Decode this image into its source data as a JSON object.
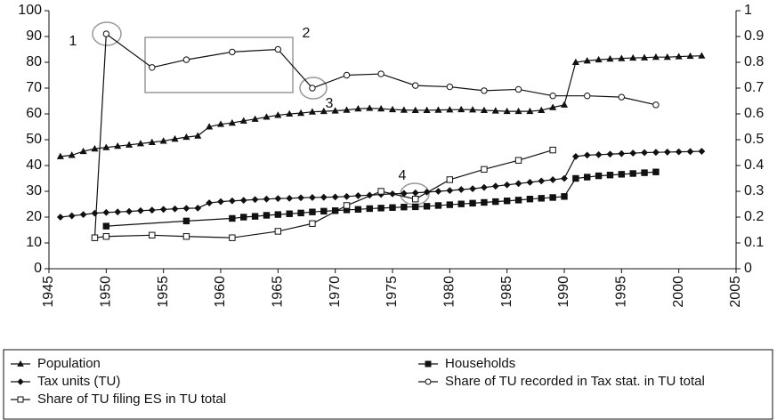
{
  "chart_data": {
    "type": "line",
    "xlim": [
      1945,
      2005
    ],
    "xticks": [
      1945,
      1950,
      1955,
      1960,
      1965,
      1970,
      1975,
      1980,
      1985,
      1990,
      1995,
      2000,
      2005
    ],
    "ylim": [
      0,
      100
    ],
    "yticks": [
      0,
      10,
      20,
      30,
      40,
      50,
      60,
      70,
      80,
      90,
      100
    ],
    "y2lim": [
      0,
      1
    ],
    "y2ticks": [
      0,
      0.1,
      0.2,
      0.3,
      0.4,
      0.5,
      0.6,
      0.7,
      0.8,
      0.9,
      1
    ],
    "annotations": [
      "1",
      "2",
      "3",
      "4"
    ],
    "series": [
      {
        "name": "Population",
        "marker": "triangle",
        "color": "#111111",
        "x": [
          1946,
          1947,
          1948,
          1949,
          1950,
          1951,
          1952,
          1953,
          1954,
          1955,
          1956,
          1957,
          1958,
          1959,
          1960,
          1961,
          1962,
          1963,
          1964,
          1965,
          1966,
          1967,
          1968,
          1969,
          1970,
          1971,
          1972,
          1973,
          1974,
          1975,
          1976,
          1977,
          1978,
          1979,
          1980,
          1981,
          1982,
          1983,
          1984,
          1985,
          1986,
          1987,
          1988,
          1989,
          1990,
          1991,
          1992,
          1993,
          1994,
          1995,
          1996,
          1997,
          1998,
          1999,
          2000,
          2001,
          2002
        ],
        "values": [
          43.5,
          44,
          45.5,
          46.5,
          47,
          47.5,
          48,
          48.5,
          49,
          49.5,
          50.3,
          51,
          51.5,
          55,
          56,
          56.5,
          57.3,
          58,
          58.8,
          59.5,
          60,
          60.3,
          60.8,
          61,
          61.2,
          61.5,
          62,
          62.2,
          62,
          61.7,
          61.5,
          61.4,
          61.4,
          61.5,
          61.6,
          61.7,
          61.6,
          61.4,
          61.2,
          61,
          61,
          61,
          61.4,
          62.5,
          63.5,
          80,
          80.6,
          81,
          81.3,
          81.5,
          81.7,
          81.8,
          82,
          82,
          82.2,
          82.4,
          82.5
        ]
      },
      {
        "name": "Households",
        "marker": "square",
        "color": "#111111",
        "x": [
          1950,
          1957,
          1961,
          1962,
          1963,
          1964,
          1965,
          1966,
          1967,
          1968,
          1969,
          1970,
          1971,
          1972,
          1973,
          1974,
          1975,
          1976,
          1977,
          1978,
          1979,
          1980,
          1981,
          1982,
          1983,
          1984,
          1985,
          1986,
          1987,
          1988,
          1989,
          1990,
          1991,
          1992,
          1993,
          1994,
          1995,
          1996,
          1997,
          1998
        ],
        "values": [
          16.5,
          18.5,
          19.5,
          20,
          20.3,
          20.7,
          21,
          21.3,
          21.6,
          22,
          22.3,
          22.5,
          22.8,
          23,
          23.3,
          23.5,
          23.7,
          23.9,
          24,
          24.2,
          24.5,
          24.8,
          25.1,
          25.4,
          25.7,
          26,
          26.3,
          26.6,
          27,
          27.3,
          27.6,
          28,
          35,
          35.5,
          36,
          36.3,
          36.6,
          36.9,
          37.2,
          37.5
        ]
      },
      {
        "name": "Tax units (TU)",
        "marker": "diamond",
        "color": "#111111",
        "x": [
          1946,
          1947,
          1948,
          1949,
          1950,
          1951,
          1952,
          1953,
          1954,
          1955,
          1956,
          1957,
          1958,
          1959,
          1960,
          1961,
          1962,
          1963,
          1964,
          1965,
          1966,
          1967,
          1968,
          1969,
          1970,
          1971,
          1972,
          1973,
          1974,
          1975,
          1976,
          1977,
          1978,
          1979,
          1980,
          1981,
          1982,
          1983,
          1984,
          1985,
          1986,
          1987,
          1988,
          1989,
          1990,
          1991,
          1992,
          1993,
          1994,
          1995,
          1996,
          1997,
          1998,
          1999,
          2000,
          2001,
          2002
        ],
        "values": [
          20,
          20.5,
          21,
          21.5,
          21.8,
          22,
          22.2,
          22.5,
          22.7,
          23,
          23.2,
          23.4,
          23.5,
          25.5,
          26,
          26.3,
          26.5,
          26.8,
          27,
          27.2,
          27.3,
          27.5,
          27.6,
          27.7,
          27.8,
          28,
          28.3,
          28.5,
          28.8,
          29,
          29.2,
          29.4,
          29.7,
          30,
          30.3,
          30.7,
          31,
          31.5,
          32,
          32.5,
          33,
          33.5,
          34,
          34.5,
          35,
          43.5,
          44,
          44.2,
          44.4,
          44.6,
          44.8,
          45,
          45.1,
          45.2,
          45.3,
          45.4,
          45.5
        ]
      },
      {
        "name": "Share of TU recorded in Tax stat. in TU total",
        "marker": "circle",
        "color": "#111111",
        "axis": "y2",
        "x": [
          1949,
          1950,
          1954,
          1957,
          1961,
          1965,
          1968,
          1971,
          1974,
          1977,
          1980,
          1983,
          1986,
          1989,
          1992,
          1995,
          1998
        ],
        "values": [
          0.12,
          0.91,
          0.78,
          0.81,
          0.84,
          0.85,
          0.7,
          0.75,
          0.755,
          0.71,
          0.705,
          0.69,
          0.695,
          0.67,
          0.67,
          0.665,
          0.635
        ]
      },
      {
        "name": "Share of TU filing ES in TU total",
        "marker": "opensquare",
        "color": "#111111",
        "axis": "y2",
        "x": [
          1949,
          1950,
          1954,
          1957,
          1961,
          1965,
          1968,
          1971,
          1974,
          1977,
          1980,
          1983,
          1986,
          1989
        ],
        "values": [
          0.12,
          0.125,
          0.13,
          0.125,
          0.12,
          0.145,
          0.175,
          0.245,
          0.3,
          0.27,
          0.345,
          0.385,
          0.42,
          0.46
        ]
      }
    ]
  }
}
